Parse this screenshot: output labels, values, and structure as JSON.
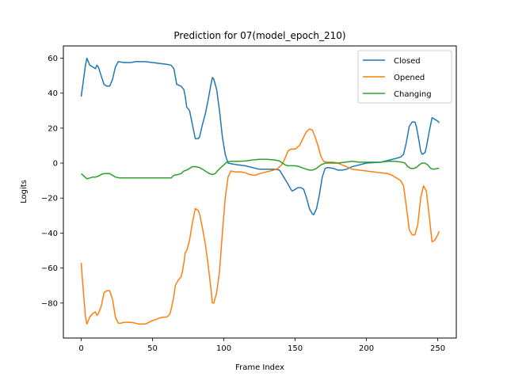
{
  "chart_data": {
    "type": "line",
    "title": "Prediction for 07(model_epoch_210)",
    "xlabel": "Frame Index",
    "ylabel": "Logits",
    "xlim": [
      -12.5,
      263
    ],
    "ylim": [
      -100,
      67
    ],
    "xticks": [
      0,
      50,
      100,
      150,
      200,
      250
    ],
    "yticks": [
      -80,
      -60,
      -40,
      -20,
      0,
      20,
      40,
      60
    ],
    "grid": false,
    "legend_position": "upper-right",
    "series": [
      {
        "name": "Closed",
        "color": "#1f77b4",
        "points": [
          [
            0,
            38
          ],
          [
            1,
            44
          ],
          [
            2,
            50
          ],
          [
            3,
            56
          ],
          [
            4,
            60
          ],
          [
            5,
            58
          ],
          [
            6,
            56
          ],
          [
            8,
            55
          ],
          [
            10,
            54
          ],
          [
            11,
            56
          ],
          [
            12,
            55
          ],
          [
            14,
            50
          ],
          [
            16,
            45
          ],
          [
            18,
            44
          ],
          [
            20,
            44
          ],
          [
            22,
            48
          ],
          [
            24,
            55
          ],
          [
            26,
            58
          ],
          [
            30,
            57.5
          ],
          [
            35,
            57.5
          ],
          [
            38,
            58
          ],
          [
            45,
            58
          ],
          [
            50,
            57.5
          ],
          [
            55,
            57
          ],
          [
            60,
            56.5
          ],
          [
            63,
            56
          ],
          [
            65,
            54
          ],
          [
            67,
            45
          ],
          [
            70,
            44
          ],
          [
            72,
            42
          ],
          [
            73,
            38
          ],
          [
            74,
            32
          ],
          [
            76,
            30
          ],
          [
            78,
            22
          ],
          [
            80,
            14
          ],
          [
            82,
            14
          ],
          [
            83,
            15
          ],
          [
            85,
            22
          ],
          [
            87,
            28
          ],
          [
            89,
            36
          ],
          [
            91,
            45
          ],
          [
            92,
            49
          ],
          [
            93,
            48
          ],
          [
            95,
            42
          ],
          [
            97,
            30
          ],
          [
            99,
            15
          ],
          [
            101,
            5
          ],
          [
            103,
            0
          ],
          [
            106,
            -0.5
          ],
          [
            110,
            -1
          ],
          [
            115,
            -1.5
          ],
          [
            120,
            -2.5
          ],
          [
            125,
            -3.5
          ],
          [
            130,
            -3.5
          ],
          [
            136,
            -3.5
          ],
          [
            139,
            -4
          ],
          [
            142,
            -8
          ],
          [
            145,
            -12
          ],
          [
            147,
            -15
          ],
          [
            148,
            -16
          ],
          [
            150,
            -15
          ],
          [
            152,
            -14
          ],
          [
            154,
            -14
          ],
          [
            156,
            -15
          ],
          [
            158,
            -20
          ],
          [
            160,
            -26
          ],
          [
            162,
            -29
          ],
          [
            163,
            -29.5
          ],
          [
            165,
            -26
          ],
          [
            167,
            -18
          ],
          [
            169,
            -8
          ],
          [
            171,
            -3
          ],
          [
            173,
            -2.5
          ],
          [
            177,
            -3
          ],
          [
            180,
            -4
          ],
          [
            183,
            -4
          ],
          [
            186,
            -3.5
          ],
          [
            190,
            -2
          ],
          [
            195,
            -1
          ],
          [
            200,
            0
          ],
          [
            210,
            0.5
          ],
          [
            220,
            2.5
          ],
          [
            224,
            3.5
          ],
          [
            226,
            5
          ],
          [
            228,
            12
          ],
          [
            230,
            21
          ],
          [
            232,
            23.5
          ],
          [
            234,
            23.5
          ],
          [
            235,
            21
          ],
          [
            237,
            12
          ],
          [
            238,
            7
          ],
          [
            239,
            5
          ],
          [
            241,
            6
          ],
          [
            242,
            9
          ],
          [
            244,
            18
          ],
          [
            246,
            26
          ],
          [
            248,
            25
          ],
          [
            250,
            24
          ],
          [
            251,
            23
          ]
        ]
      },
      {
        "name": "Opened",
        "color": "#ff7f0e",
        "points": [
          [
            0,
            -57
          ],
          [
            1,
            -68
          ],
          [
            2,
            -78
          ],
          [
            3,
            -88
          ],
          [
            4,
            -92
          ],
          [
            6,
            -88
          ],
          [
            8,
            -86
          ],
          [
            10,
            -85
          ],
          [
            11,
            -87
          ],
          [
            12,
            -86
          ],
          [
            14,
            -82
          ],
          [
            16,
            -74
          ],
          [
            18,
            -73
          ],
          [
            20,
            -73
          ],
          [
            22,
            -78
          ],
          [
            24,
            -88
          ],
          [
            26,
            -91.5
          ],
          [
            28,
            -91.5
          ],
          [
            30,
            -91
          ],
          [
            35,
            -91
          ],
          [
            38,
            -91.5
          ],
          [
            40,
            -92
          ],
          [
            45,
            -92
          ],
          [
            50,
            -90
          ],
          [
            52,
            -89.5
          ],
          [
            55,
            -88.5
          ],
          [
            58,
            -88
          ],
          [
            60,
            -88
          ],
          [
            62,
            -86.5
          ],
          [
            63,
            -84
          ],
          [
            65,
            -76
          ],
          [
            66,
            -70
          ],
          [
            68,
            -67
          ],
          [
            70,
            -65
          ],
          [
            71,
            -62
          ],
          [
            72,
            -57
          ],
          [
            73,
            -51
          ],
          [
            74,
            -50
          ],
          [
            76,
            -44
          ],
          [
            78,
            -34
          ],
          [
            80,
            -26
          ],
          [
            82,
            -27
          ],
          [
            83,
            -29
          ],
          [
            85,
            -37
          ],
          [
            87,
            -46
          ],
          [
            89,
            -58
          ],
          [
            91,
            -72
          ],
          [
            92,
            -80
          ],
          [
            93,
            -80
          ],
          [
            95,
            -74
          ],
          [
            97,
            -62
          ],
          [
            99,
            -40
          ],
          [
            101,
            -20
          ],
          [
            103,
            -8
          ],
          [
            105,
            -4.5
          ],
          [
            108,
            -5
          ],
          [
            112,
            -5
          ],
          [
            115,
            -5.5
          ],
          [
            118,
            -6.5
          ],
          [
            122,
            -7
          ],
          [
            125,
            -6
          ],
          [
            130,
            -5
          ],
          [
            135,
            -4
          ],
          [
            138,
            -3
          ],
          [
            141,
            -0.5
          ],
          [
            143,
            3
          ],
          [
            145,
            7
          ],
          [
            147,
            8
          ],
          [
            150,
            8
          ],
          [
            153,
            10
          ],
          [
            156,
            15
          ],
          [
            158,
            18
          ],
          [
            160,
            19.5
          ],
          [
            162,
            19
          ],
          [
            164,
            15
          ],
          [
            166,
            10
          ],
          [
            168,
            4
          ],
          [
            170,
            1
          ],
          [
            173,
            0.5
          ],
          [
            177,
            0.5
          ],
          [
            180,
            0
          ],
          [
            183,
            -1
          ],
          [
            186,
            -2
          ],
          [
            190,
            -3.5
          ],
          [
            195,
            -4
          ],
          [
            200,
            -4.5
          ],
          [
            205,
            -5
          ],
          [
            210,
            -5.5
          ],
          [
            215,
            -6
          ],
          [
            218,
            -7
          ],
          [
            220,
            -8
          ],
          [
            222,
            -9
          ],
          [
            224,
            -10
          ],
          [
            226,
            -13
          ],
          [
            228,
            -25
          ],
          [
            230,
            -38
          ],
          [
            232,
            -41
          ],
          [
            234,
            -41
          ],
          [
            236,
            -35
          ],
          [
            238,
            -20
          ],
          [
            240,
            -13
          ],
          [
            242,
            -16
          ],
          [
            244,
            -30
          ],
          [
            246,
            -45
          ],
          [
            248,
            -44
          ],
          [
            250,
            -41
          ],
          [
            251,
            -39
          ]
        ]
      },
      {
        "name": "Changing",
        "color": "#2ca02c",
        "points": [
          [
            0,
            -6
          ],
          [
            2,
            -7.5
          ],
          [
            4,
            -9
          ],
          [
            6,
            -8.5
          ],
          [
            8,
            -8
          ],
          [
            10,
            -8
          ],
          [
            12,
            -7.5
          ],
          [
            14,
            -6.5
          ],
          [
            16,
            -6
          ],
          [
            18,
            -6
          ],
          [
            20,
            -6
          ],
          [
            22,
            -7
          ],
          [
            24,
            -8
          ],
          [
            27,
            -8.5
          ],
          [
            32,
            -8.5
          ],
          [
            40,
            -8.5
          ],
          [
            50,
            -8.5
          ],
          [
            55,
            -8.5
          ],
          [
            60,
            -8.5
          ],
          [
            63,
            -8.5
          ],
          [
            65,
            -7
          ],
          [
            68,
            -6.5
          ],
          [
            70,
            -6
          ],
          [
            72,
            -4.5
          ],
          [
            74,
            -4
          ],
          [
            76,
            -3
          ],
          [
            78,
            -2
          ],
          [
            80,
            -2
          ],
          [
            83,
            -2.5
          ],
          [
            86,
            -4
          ],
          [
            88,
            -5
          ],
          [
            90,
            -6
          ],
          [
            92,
            -6.5
          ],
          [
            94,
            -6
          ],
          [
            96,
            -4
          ],
          [
            98,
            -2.5
          ],
          [
            100,
            -1
          ],
          [
            102,
            0.5
          ],
          [
            105,
            1
          ],
          [
            110,
            1
          ],
          [
            115,
            1.2
          ],
          [
            120,
            1.8
          ],
          [
            125,
            2.2
          ],
          [
            130,
            2.2
          ],
          [
            136,
            1.8
          ],
          [
            139,
            1.2
          ],
          [
            141,
            0
          ],
          [
            143,
            -1
          ],
          [
            145,
            -1.5
          ],
          [
            150,
            -1.5
          ],
          [
            153,
            -2
          ],
          [
            156,
            -3
          ],
          [
            158,
            -3.5
          ],
          [
            160,
            -4
          ],
          [
            162,
            -4
          ],
          [
            165,
            -3
          ],
          [
            168,
            -1
          ],
          [
            171,
            0
          ],
          [
            175,
            0
          ],
          [
            180,
            0
          ],
          [
            185,
            0.5
          ],
          [
            190,
            1
          ],
          [
            195,
            0.5
          ],
          [
            200,
            0.5
          ],
          [
            210,
            0.5
          ],
          [
            215,
            1
          ],
          [
            220,
            1
          ],
          [
            225,
            0.5
          ],
          [
            227,
            0
          ],
          [
            229,
            -2
          ],
          [
            231,
            -3
          ],
          [
            233,
            -3
          ],
          [
            235,
            -2.5
          ],
          [
            237,
            -1
          ],
          [
            239,
            0
          ],
          [
            241,
            0
          ],
          [
            243,
            -1
          ],
          [
            245,
            -3
          ],
          [
            247,
            -3.5
          ],
          [
            250,
            -3
          ],
          [
            251,
            -3
          ]
        ]
      }
    ]
  }
}
